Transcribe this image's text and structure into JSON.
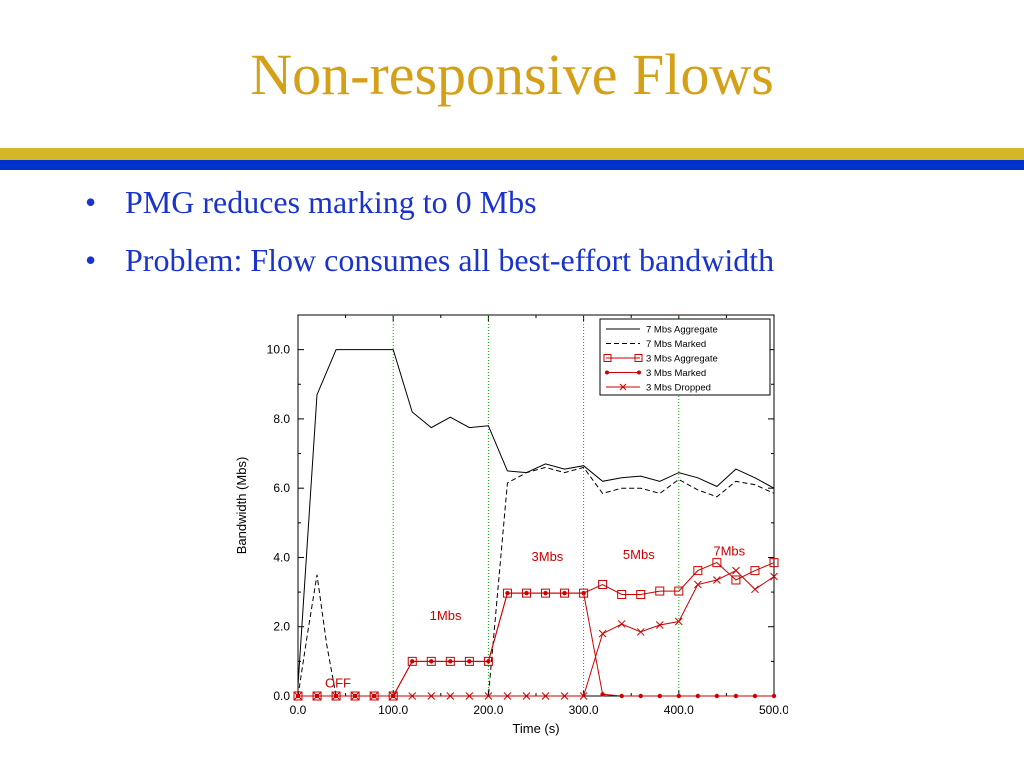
{
  "slide": {
    "title": "Non-responsive Flows",
    "bullets": [
      "PMG reduces marking to 0 Mbs",
      "Problem: Flow consumes all best-effort bandwidth"
    ]
  },
  "colors": {
    "title": "#d4a017",
    "bullet_text": "#1a33cc",
    "rule_gold": "#d4b62a",
    "rule_blue": "#0033cc",
    "series_black": "#000000",
    "series_red": "#cc0000",
    "phase_line": "#00aa00"
  },
  "chart_data": {
    "type": "line",
    "xlabel": "Time (s)",
    "ylabel": "Bandwidth (Mbs)",
    "xlim": [
      0,
      500
    ],
    "ylim": [
      0,
      11
    ],
    "xticks": [
      "0.0",
      "100.0",
      "200.0",
      "300.0",
      "400.0",
      "500.0"
    ],
    "yticks": [
      "0.0",
      "2.0",
      "4.0",
      "6.0",
      "8.0",
      "10.0"
    ],
    "grid": false,
    "legend_position": "top-right",
    "phase_lines_x": [
      100,
      200,
      300,
      400
    ],
    "annotations": [
      {
        "text": "OFF",
        "x": 42,
        "y": 0.25
      },
      {
        "text": "1Mbs",
        "x": 155,
        "y": 2.2
      },
      {
        "text": "3Mbs",
        "x": 262,
        "y": 3.9
      },
      {
        "text": "5Mbs",
        "x": 358,
        "y": 3.95
      },
      {
        "text": "7Mbs",
        "x": 453,
        "y": 4.05
      }
    ],
    "series": [
      {
        "name": "7 Mbs Aggregate",
        "style": "solid",
        "color": "#000000",
        "marker": "none",
        "x": [
          0,
          20,
          40,
          60,
          80,
          100,
          120,
          140,
          160,
          180,
          200,
          220,
          240,
          260,
          280,
          300,
          320,
          340,
          360,
          380,
          400,
          420,
          440,
          460,
          480,
          500
        ],
        "y": [
          0.3,
          8.7,
          10.0,
          10.0,
          10.0,
          10.0,
          8.2,
          7.75,
          8.05,
          7.75,
          7.8,
          6.5,
          6.45,
          6.7,
          6.55,
          6.65,
          6.2,
          6.3,
          6.35,
          6.2,
          6.45,
          6.3,
          6.05,
          6.55,
          6.3,
          6.0
        ]
      },
      {
        "name": "7 Mbs Marked",
        "style": "dashed",
        "color": "#000000",
        "marker": "none",
        "x": [
          0,
          10,
          20,
          30,
          40,
          60,
          80,
          100,
          120,
          140,
          160,
          180,
          200,
          220,
          240,
          260,
          280,
          300,
          320,
          340,
          360,
          380,
          400,
          420,
          440,
          460,
          480,
          500
        ],
        "y": [
          0.0,
          1.8,
          3.5,
          1.5,
          0.0,
          0.0,
          0.0,
          0.0,
          0.0,
          0.0,
          0.0,
          0.0,
          0.0,
          6.15,
          6.45,
          6.6,
          6.45,
          6.6,
          5.85,
          6.0,
          6.0,
          5.85,
          6.25,
          5.95,
          5.75,
          6.2,
          6.1,
          5.85
        ]
      },
      {
        "name": "3 Mbs Aggregate",
        "style": "solid",
        "color": "#cc0000",
        "marker": "square",
        "x": [
          0,
          20,
          40,
          60,
          80,
          100,
          120,
          140,
          160,
          180,
          200,
          220,
          240,
          260,
          280,
          300,
          320,
          340,
          360,
          380,
          400,
          420,
          440,
          460,
          480,
          500
        ],
        "y": [
          0.0,
          0.0,
          0.0,
          0.0,
          0.0,
          0.0,
          1.0,
          1.0,
          1.0,
          1.0,
          1.0,
          2.97,
          2.97,
          2.97,
          2.97,
          2.97,
          3.22,
          2.93,
          2.93,
          3.03,
          3.03,
          3.62,
          3.85,
          3.35,
          3.62,
          3.85
        ]
      },
      {
        "name": "3 Mbs Marked",
        "style": "solid",
        "color": "#cc0000",
        "marker": "dot",
        "x": [
          0,
          20,
          40,
          60,
          80,
          100,
          120,
          140,
          160,
          180,
          200,
          220,
          240,
          260,
          280,
          300,
          320,
          340,
          360,
          380,
          400,
          420,
          440,
          460,
          480,
          500
        ],
        "y": [
          0.0,
          0.0,
          0.0,
          0.0,
          0.0,
          0.0,
          1.0,
          1.0,
          1.0,
          1.0,
          1.0,
          2.97,
          2.97,
          2.97,
          2.97,
          2.97,
          0.05,
          0.0,
          0.0,
          0.0,
          0.0,
          0.0,
          0.0,
          0.0,
          0.0,
          0.0
        ]
      },
      {
        "name": "3 Mbs Dropped",
        "style": "solid",
        "color": "#cc0000",
        "marker": "x",
        "x": [
          0,
          20,
          40,
          60,
          80,
          100,
          120,
          140,
          160,
          180,
          200,
          220,
          240,
          260,
          280,
          300,
          320,
          340,
          360,
          380,
          400,
          420,
          440,
          460,
          480,
          500
        ],
        "y": [
          0.0,
          0.0,
          0.0,
          0.0,
          0.0,
          0.0,
          0.0,
          0.0,
          0.0,
          0.0,
          0.0,
          0.0,
          0.0,
          0.0,
          0.0,
          0.0,
          1.8,
          2.08,
          1.85,
          2.05,
          2.15,
          3.22,
          3.35,
          3.62,
          3.08,
          3.45
        ]
      }
    ]
  }
}
